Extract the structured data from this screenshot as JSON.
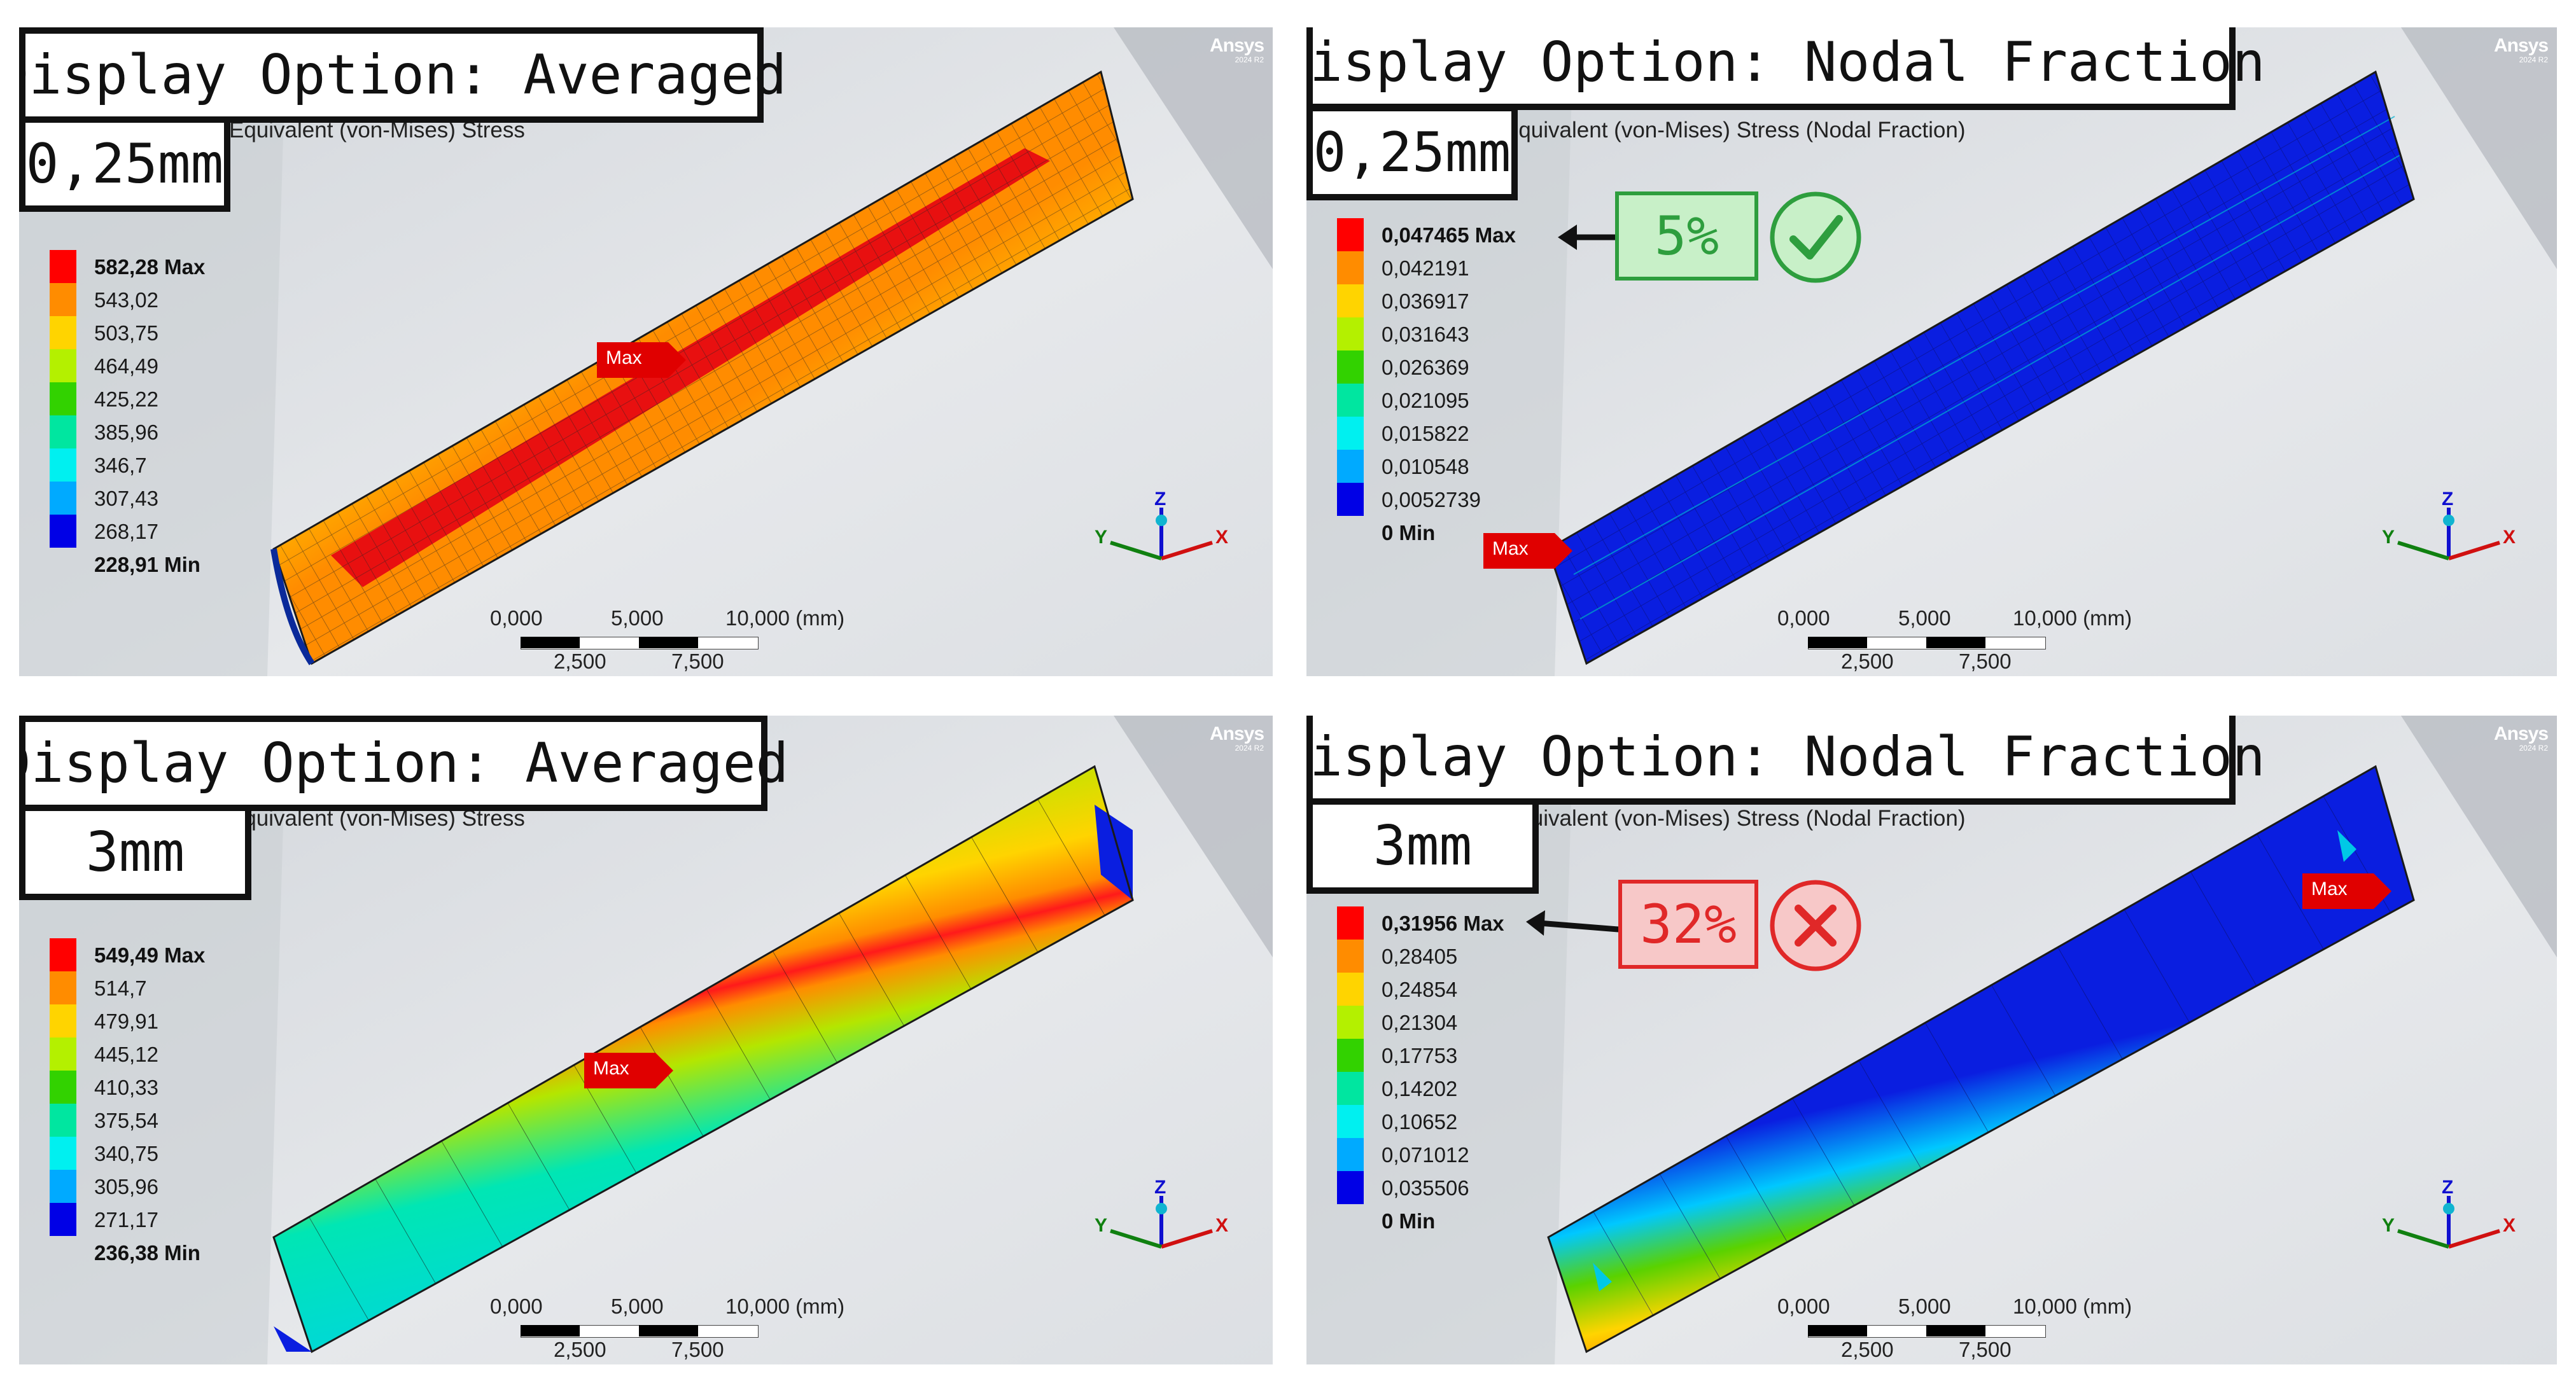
{
  "ansys": {
    "brand": "Ansys",
    "version": "2024 R2"
  },
  "panels": [
    {
      "display_label": "Display Option: Averaged",
      "size_label": "0,25mm",
      "stress_title": "Equivalent (von-Mises) Stress",
      "legend": [
        "582,28 Max",
        "543,02",
        "503,75",
        "464,49",
        "425,22",
        "385,96",
        "346,7",
        "307,43",
        "268,17",
        "228,91 Min"
      ],
      "max_tag": "Max"
    },
    {
      "display_label": "Display Option: Nodal Fraction",
      "size_label": "0,25mm",
      "stress_title": "Equivalent (von-Mises) Stress (Nodal Fraction)",
      "legend": [
        "0,047465 Max",
        "0,042191",
        "0,036917",
        "0,031643",
        "0,026369",
        "0,021095",
        "0,015822",
        "0,010548",
        "0,0052739",
        "0 Min"
      ],
      "max_tag": "Max",
      "callout": {
        "text": "5%",
        "result": "ok"
      }
    },
    {
      "display_label": "Display Option: Averaged",
      "size_label": "3mm",
      "stress_title": "Equivalent (von-Mises) Stress",
      "legend": [
        "549,49 Max",
        "514,7",
        "479,91",
        "445,12",
        "410,33",
        "375,54",
        "340,75",
        "305,96",
        "271,17",
        "236,38 Min"
      ],
      "max_tag": "Max"
    },
    {
      "display_label": "Display Option: Nodal Fraction",
      "size_label": "3mm",
      "stress_title": "Equivalent (von-Mises) Stress (Nodal Fraction)",
      "legend": [
        "0,31956 Max",
        "0,28405",
        "0,24854",
        "0,21304",
        "0,17753",
        "0,14202",
        "0,10652",
        "0,071012",
        "0,035506",
        "0 Min"
      ],
      "max_tag": "Max",
      "callout": {
        "text": "32%",
        "result": "fail"
      }
    }
  ],
  "legend_colors": [
    "#ff0000",
    "#ff8c00",
    "#ffff00",
    "#b4f000",
    "#32d200",
    "#00e6a0",
    "#00f0f0",
    "#00aaff",
    "#0000e6",
    "#0000cc"
  ],
  "scale_bar": {
    "ticks_top": [
      "0,000",
      "5,000",
      "10,000 (mm)"
    ],
    "ticks_bottom": [
      "2,500",
      "7,500"
    ]
  },
  "axes": {
    "x": "X",
    "y": "Y",
    "z": "Z"
  },
  "callout_colors": {
    "ok_fill": "#c8f0c8",
    "ok_stroke": "#2e9e3e",
    "fail_fill": "#f7c8c8",
    "fail_stroke": "#e02828"
  }
}
